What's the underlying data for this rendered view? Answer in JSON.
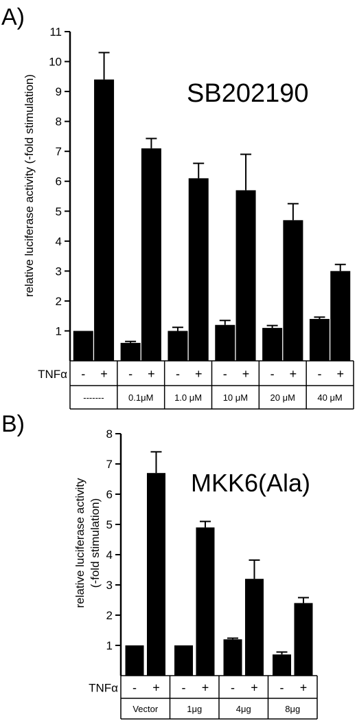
{
  "chart_data": [
    {
      "type": "bar",
      "panel_label": "A)",
      "annotation": "SB202190",
      "ylabel": "relative luciferase activity (-fold stimulation)",
      "ylim": [
        0,
        11
      ],
      "yticks": [
        "1",
        "2",
        "3",
        "4",
        "5",
        "6",
        "7",
        "8",
        "9",
        "10",
        "11"
      ],
      "treatment_label": "TNFα",
      "treatment_states": [
        "-",
        "+"
      ],
      "groups": [
        "-------",
        "0.1μM",
        "1.0 μM",
        "10 μM",
        "20 μM",
        "40 μM"
      ],
      "series": [
        {
          "values": [
            1.0,
            0.6,
            1.0,
            1.2,
            1.1,
            1.4
          ],
          "errors": [
            0,
            0.05,
            0.12,
            0.15,
            0.08,
            0.06
          ]
        },
        {
          "values": [
            9.4,
            7.1,
            6.1,
            5.7,
            4.7,
            3.0
          ],
          "errors": [
            0.9,
            0.33,
            0.5,
            1.2,
            0.55,
            0.22
          ]
        }
      ]
    },
    {
      "type": "bar",
      "panel_label": "B)",
      "annotation": "MKK6(Ala)",
      "ylabel": [
        "relative luciferase activity",
        "(-fold stimulation)"
      ],
      "ylim": [
        0,
        8
      ],
      "yticks": [
        "1",
        "2",
        "3",
        "4",
        "5",
        "6",
        "7",
        "8"
      ],
      "treatment_label": "TNFα",
      "treatment_states": [
        "-",
        "+"
      ],
      "groups": [
        "Vector",
        "1μg",
        "4μg",
        "8μg"
      ],
      "series": [
        {
          "values": [
            1.0,
            1.0,
            1.2,
            0.7
          ],
          "errors": [
            0,
            0,
            0.04,
            0.08
          ]
        },
        {
          "values": [
            6.7,
            4.9,
            3.2,
            2.4
          ],
          "errors": [
            0.7,
            0.2,
            0.62,
            0.18
          ]
        }
      ]
    }
  ]
}
